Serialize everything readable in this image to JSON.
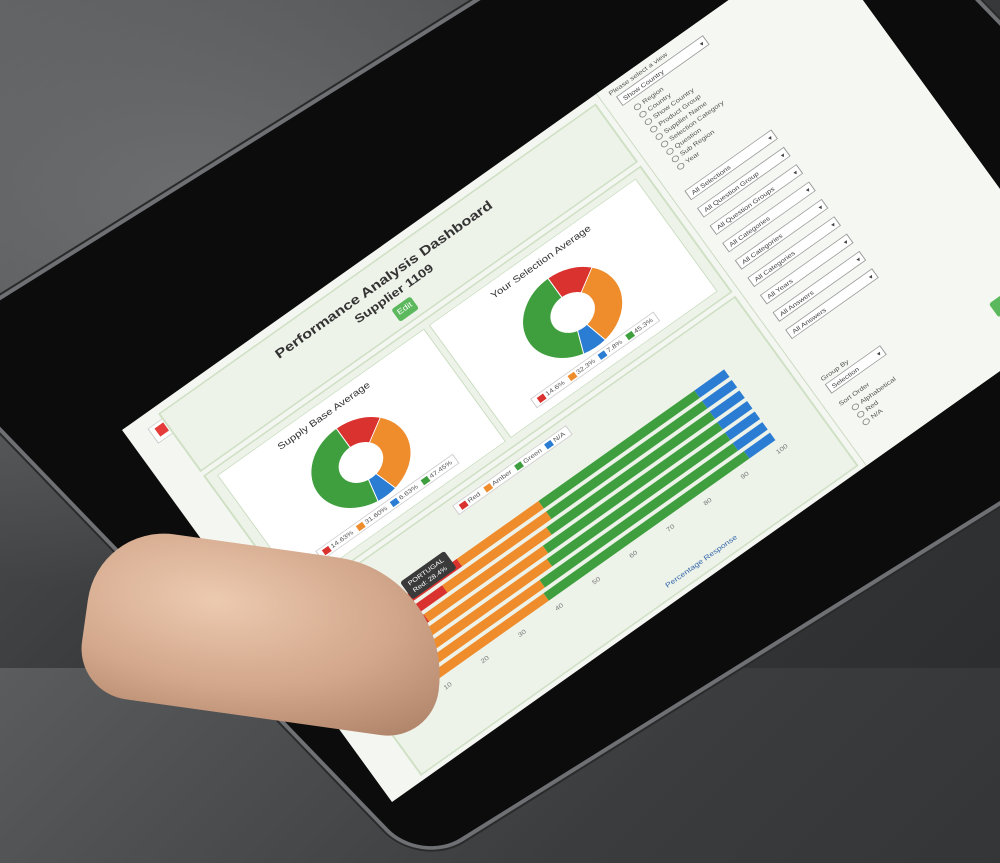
{
  "dashboard": {
    "title": "Performance Analysis Dashboard",
    "subtitle": "Supplier 1109",
    "edit_button": "Edit",
    "apply_button": "Apply"
  },
  "supply_base": {
    "title": "Supply Base Average",
    "legend": [
      "14.63%",
      "31.60%",
      "6.63%",
      "47.45%"
    ]
  },
  "your_selection": {
    "title": "Your Selection Average",
    "legend": [
      "14.6%",
      "32.3%",
      "7.8%",
      "45.3%"
    ]
  },
  "bar_chart": {
    "legend": [
      "Red",
      "Amber",
      "Green",
      "N/A"
    ],
    "tooltip_line1": "PORTUGAL",
    "tooltip_line2": "Red: 28.4%",
    "xlabel": "Percentage Response",
    "ticks": [
      "0",
      "10",
      "20",
      "30",
      "40",
      "50",
      "60",
      "70",
      "80",
      "90",
      "100"
    ]
  },
  "sidebar": {
    "filter_label": "Please select a view",
    "filter_value": "Show Country",
    "options": [
      "Region",
      "Country",
      "Show Country",
      "Product Group",
      "Supplier Name",
      "Selection Category",
      "Question",
      "Sub Region",
      "Year"
    ],
    "selects": [
      "All Selections",
      "All Question Group",
      "All Question Groups",
      "All Categories",
      "All Categories",
      "All Categories",
      "All Years",
      "All Answers",
      "All Answers"
    ],
    "group_label": "Group By",
    "group_value": "Selection",
    "sort_label": "Sort Order",
    "sort_options": [
      "Alphabetical",
      "Red",
      "N/A"
    ]
  },
  "colors": {
    "red": "#d9322f",
    "amber": "#ef8c2c",
    "green": "#3f9f3f",
    "blue": "#2b7cd3"
  },
  "chart_data": [
    {
      "type": "pie",
      "title": "Supply Base Average",
      "categories": [
        "Red",
        "Amber",
        "N/A",
        "Green"
      ],
      "values": [
        14.63,
        31.6,
        6.63,
        47.45
      ]
    },
    {
      "type": "pie",
      "title": "Your Selection Average",
      "categories": [
        "Red",
        "Amber",
        "N/A",
        "Green"
      ],
      "values": [
        14.6,
        32.3,
        7.8,
        45.3
      ]
    },
    {
      "type": "bar",
      "xlabel": "Percentage Response",
      "xlim": [
        0,
        100
      ],
      "series": [
        {
          "name": "Red",
          "values": [
            28,
            22,
            15,
            10,
            6,
            4,
            3
          ]
        },
        {
          "name": "Amber",
          "values": [
            22,
            28,
            33,
            35,
            38,
            36,
            36
          ]
        },
        {
          "name": "Green",
          "values": [
            42,
            42,
            44,
            47,
            48,
            52,
            54
          ]
        },
        {
          "name": "N/A",
          "values": [
            8,
            8,
            8,
            8,
            8,
            8,
            7
          ]
        }
      ]
    }
  ]
}
